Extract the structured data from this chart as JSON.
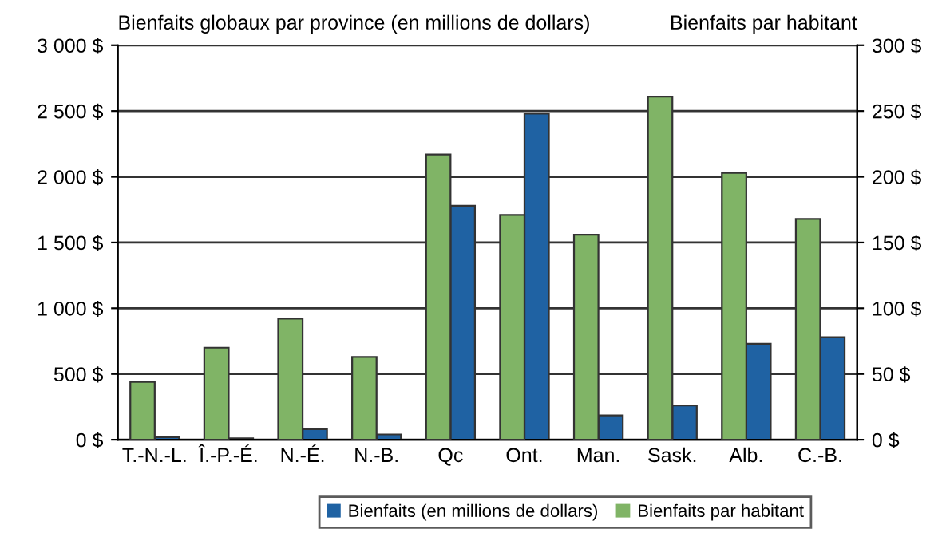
{
  "chart_data": {
    "type": "bar",
    "ylabel": "Bienfaits globaux par province (en millions de dollars)",
    "y2label": "Bienfaits par habitant",
    "categories": [
      "T.-N.-L.",
      "Î.-P.-É.",
      "N.-É.",
      "N.-B.",
      "Qc",
      "Ont.",
      "Man.",
      "Sask.",
      "Alb.",
      "C.-B."
    ],
    "series": [
      {
        "name": "Bienfaits (en millions de dollars)",
        "color": "#1f62a3",
        "values": [
          20,
          10,
          80,
          40,
          1780,
          2480,
          185,
          260,
          730,
          780
        ]
      },
      {
        "name": "Bienfaits par habitant",
        "color": "#80b466",
        "axis": "y2",
        "values": [
          44,
          70,
          92,
          63,
          217,
          171,
          156,
          261,
          203,
          168
        ]
      }
    ],
    "ylim": [
      0,
      3000
    ],
    "yticks": [
      {
        "value": 0,
        "label": "0 $"
      },
      {
        "value": 500,
        "label": "500 $"
      },
      {
        "value": 1000,
        "label": "1 000 $"
      },
      {
        "value": 1500,
        "label": "1 500 $"
      },
      {
        "value": 2000,
        "label": "2 000 $"
      },
      {
        "value": 2500,
        "label": "2 500 $"
      },
      {
        "value": 3000,
        "label": "3 000 $"
      }
    ],
    "y2lim": [
      0,
      300
    ],
    "y2ticks": [
      {
        "value": 0,
        "label": "0 $"
      },
      {
        "value": 50,
        "label": "50 $"
      },
      {
        "value": 100,
        "label": "100 $"
      },
      {
        "value": 150,
        "label": "150 $"
      },
      {
        "value": 200,
        "label": "200 $"
      },
      {
        "value": 250,
        "label": "250 $"
      },
      {
        "value": 300,
        "label": "300 $"
      }
    ],
    "grid": "y",
    "legend": "bottom"
  }
}
